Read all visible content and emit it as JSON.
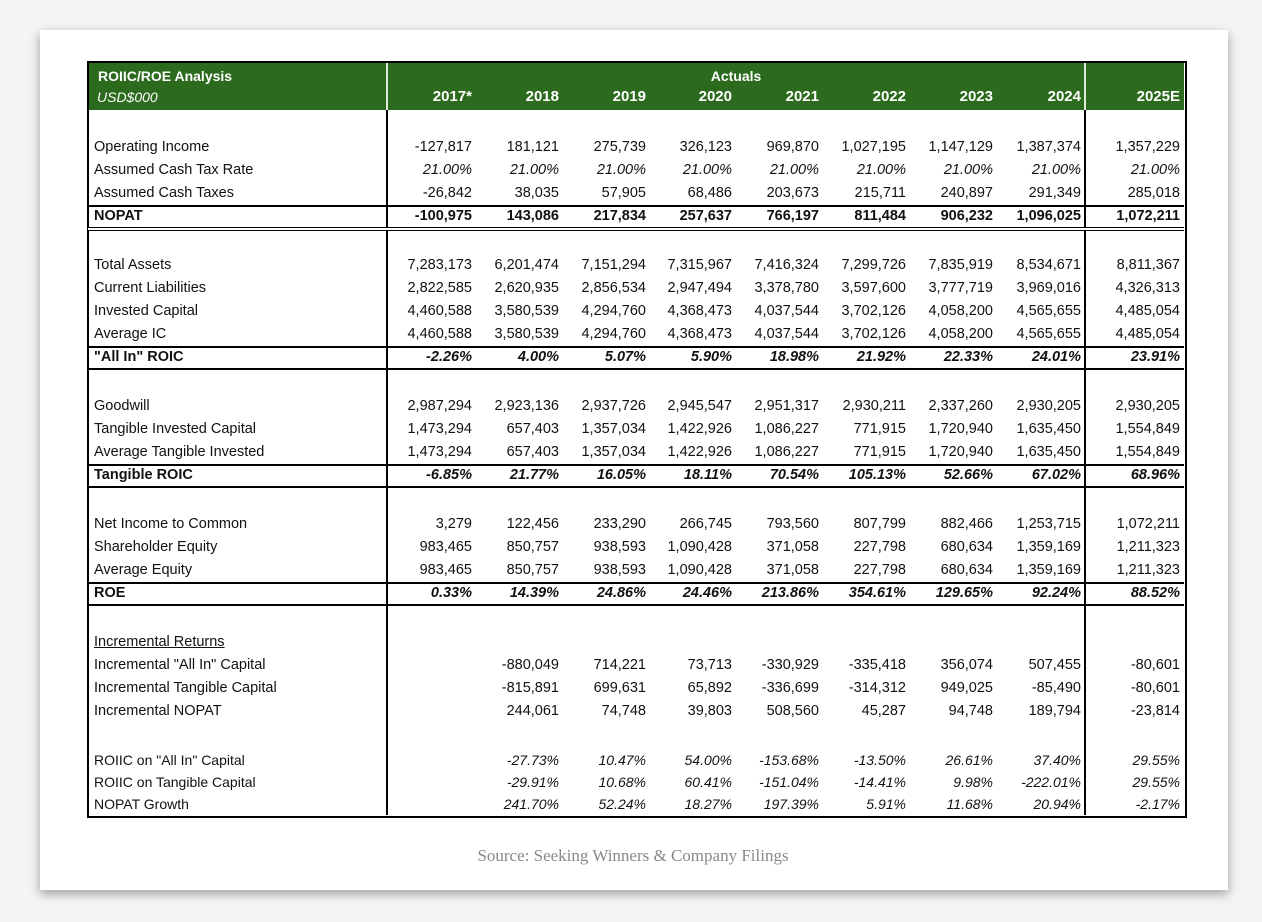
{
  "header": {
    "title": "ROIIC/ROE Analysis",
    "subtitle": "USD$000",
    "group_label": "Actuals",
    "columns": [
      "2017*",
      "2018",
      "2019",
      "2020",
      "2021",
      "2022",
      "2023",
      "2024",
      "2025E"
    ]
  },
  "sections": [
    {
      "rows": [
        {
          "label": "Operating Income",
          "values": [
            "-127,817",
            "181,121",
            "275,739",
            "326,123",
            "969,870",
            "1,027,195",
            "1,147,129",
            "1,387,374",
            "1,357,229"
          ]
        },
        {
          "label": "Assumed Cash Tax Rate",
          "values": [
            "21.00%",
            "21.00%",
            "21.00%",
            "21.00%",
            "21.00%",
            "21.00%",
            "21.00%",
            "21.00%",
            "21.00%"
          ]
        },
        {
          "label": "Assumed Cash Taxes",
          "values": [
            "-26,842",
            "38,035",
            "57,905",
            "68,486",
            "203,673",
            "215,711",
            "240,897",
            "291,349",
            "285,018"
          ]
        }
      ],
      "total": {
        "label": "NOPAT",
        "values": [
          "-100,975",
          "143,086",
          "217,834",
          "257,637",
          "766,197",
          "811,484",
          "906,232",
          "1,096,025",
          "1,072,211"
        ]
      }
    },
    {
      "rows": [
        {
          "label": "Total Assets",
          "values": [
            "7,283,173",
            "6,201,474",
            "7,151,294",
            "7,315,967",
            "7,416,324",
            "7,299,726",
            "7,835,919",
            "8,534,671",
            "8,811,367"
          ]
        },
        {
          "label": "Current Liabilities",
          "values": [
            "2,822,585",
            "2,620,935",
            "2,856,534",
            "2,947,494",
            "3,378,780",
            "3,597,600",
            "3,777,719",
            "3,969,016",
            "4,326,313"
          ]
        },
        {
          "label": "Invested Capital",
          "values": [
            "4,460,588",
            "3,580,539",
            "4,294,760",
            "4,368,473",
            "4,037,544",
            "3,702,126",
            "4,058,200",
            "4,565,655",
            "4,485,054"
          ]
        },
        {
          "label": "Average IC",
          "values": [
            "4,460,588",
            "3,580,539",
            "4,294,760",
            "4,368,473",
            "4,037,544",
            "3,702,126",
            "4,058,200",
            "4,565,655",
            "4,485,054"
          ]
        }
      ],
      "total": {
        "label": "\"All In\" ROIC",
        "values": [
          "-2.26%",
          "4.00%",
          "5.07%",
          "5.90%",
          "18.98%",
          "21.92%",
          "22.33%",
          "24.01%",
          "23.91%"
        ]
      }
    },
    {
      "rows": [
        {
          "label": "Goodwill",
          "values": [
            "2,987,294",
            "2,923,136",
            "2,937,726",
            "2,945,547",
            "2,951,317",
            "2,930,211",
            "2,337,260",
            "2,930,205",
            "2,930,205"
          ]
        },
        {
          "label": "Tangible Invested Capital",
          "values": [
            "1,473,294",
            "657,403",
            "1,357,034",
            "1,422,926",
            "1,086,227",
            "771,915",
            "1,720,940",
            "1,635,450",
            "1,554,849"
          ]
        },
        {
          "label": "Average Tangible Invested",
          "values": [
            "1,473,294",
            "657,403",
            "1,357,034",
            "1,422,926",
            "1,086,227",
            "771,915",
            "1,720,940",
            "1,635,450",
            "1,554,849"
          ]
        }
      ],
      "total": {
        "label": "Tangible ROIC",
        "values": [
          "-6.85%",
          "21.77%",
          "16.05%",
          "18.11%",
          "70.54%",
          "105.13%",
          "52.66%",
          "67.02%",
          "68.96%"
        ]
      }
    },
    {
      "rows": [
        {
          "label": "Net Income to Common",
          "values": [
            "3,279",
            "122,456",
            "233,290",
            "266,745",
            "793,560",
            "807,799",
            "882,466",
            "1,253,715",
            "1,072,211"
          ]
        },
        {
          "label": "Shareholder Equity",
          "values": [
            "983,465",
            "850,757",
            "938,593",
            "1,090,428",
            "371,058",
            "227,798",
            "680,634",
            "1,359,169",
            "1,211,323"
          ]
        },
        {
          "label": "Average Equity",
          "values": [
            "983,465",
            "850,757",
            "938,593",
            "1,090,428",
            "371,058",
            "227,798",
            "680,634",
            "1,359,169",
            "1,211,323"
          ]
        }
      ],
      "total": {
        "label": "ROE",
        "values": [
          "0.33%",
          "14.39%",
          "24.86%",
          "24.46%",
          "213.86%",
          "354.61%",
          "129.65%",
          "92.24%",
          "88.52%"
        ]
      }
    },
    {
      "heading": "Incremental Returns",
      "rows": [
        {
          "label": "Incremental \"All In\" Capital",
          "values": [
            null,
            "-880,049",
            "714,221",
            "73,713",
            "-330,929",
            "-335,418",
            "356,074",
            "507,455",
            "-80,601"
          ]
        },
        {
          "label": "Incremental Tangible Capital",
          "values": [
            null,
            "-815,891",
            "699,631",
            "65,892",
            "-336,699",
            "-314,312",
            "949,025",
            "-85,490",
            "-80,601"
          ]
        },
        {
          "label": "Incremental NOPAT",
          "values": [
            null,
            "244,061",
            "74,748",
            "39,803",
            "508,560",
            "45,287",
            "94,748",
            "189,794",
            "-23,814"
          ]
        }
      ],
      "ratios": [
        {
          "label": "ROIIC on \"All In\" Capital",
          "values": [
            null,
            "-27.73%",
            "10.47%",
            "54.00%",
            "-153.68%",
            "-13.50%",
            "26.61%",
            "37.40%",
            "29.55%"
          ]
        },
        {
          "label": "ROIIC on Tangible Capital",
          "values": [
            null,
            "-29.91%",
            "10.68%",
            "60.41%",
            "-151.04%",
            "-14.41%",
            "9.98%",
            "-222.01%",
            "29.55%"
          ]
        },
        {
          "label": "NOPAT Growth",
          "values": [
            null,
            "241.70%",
            "52.24%",
            "18.27%",
            "197.39%",
            "5.91%",
            "11.68%",
            "20.94%",
            "-2.17%"
          ]
        }
      ]
    }
  ],
  "source": "Source: Seeking Winners & Company Filings"
}
